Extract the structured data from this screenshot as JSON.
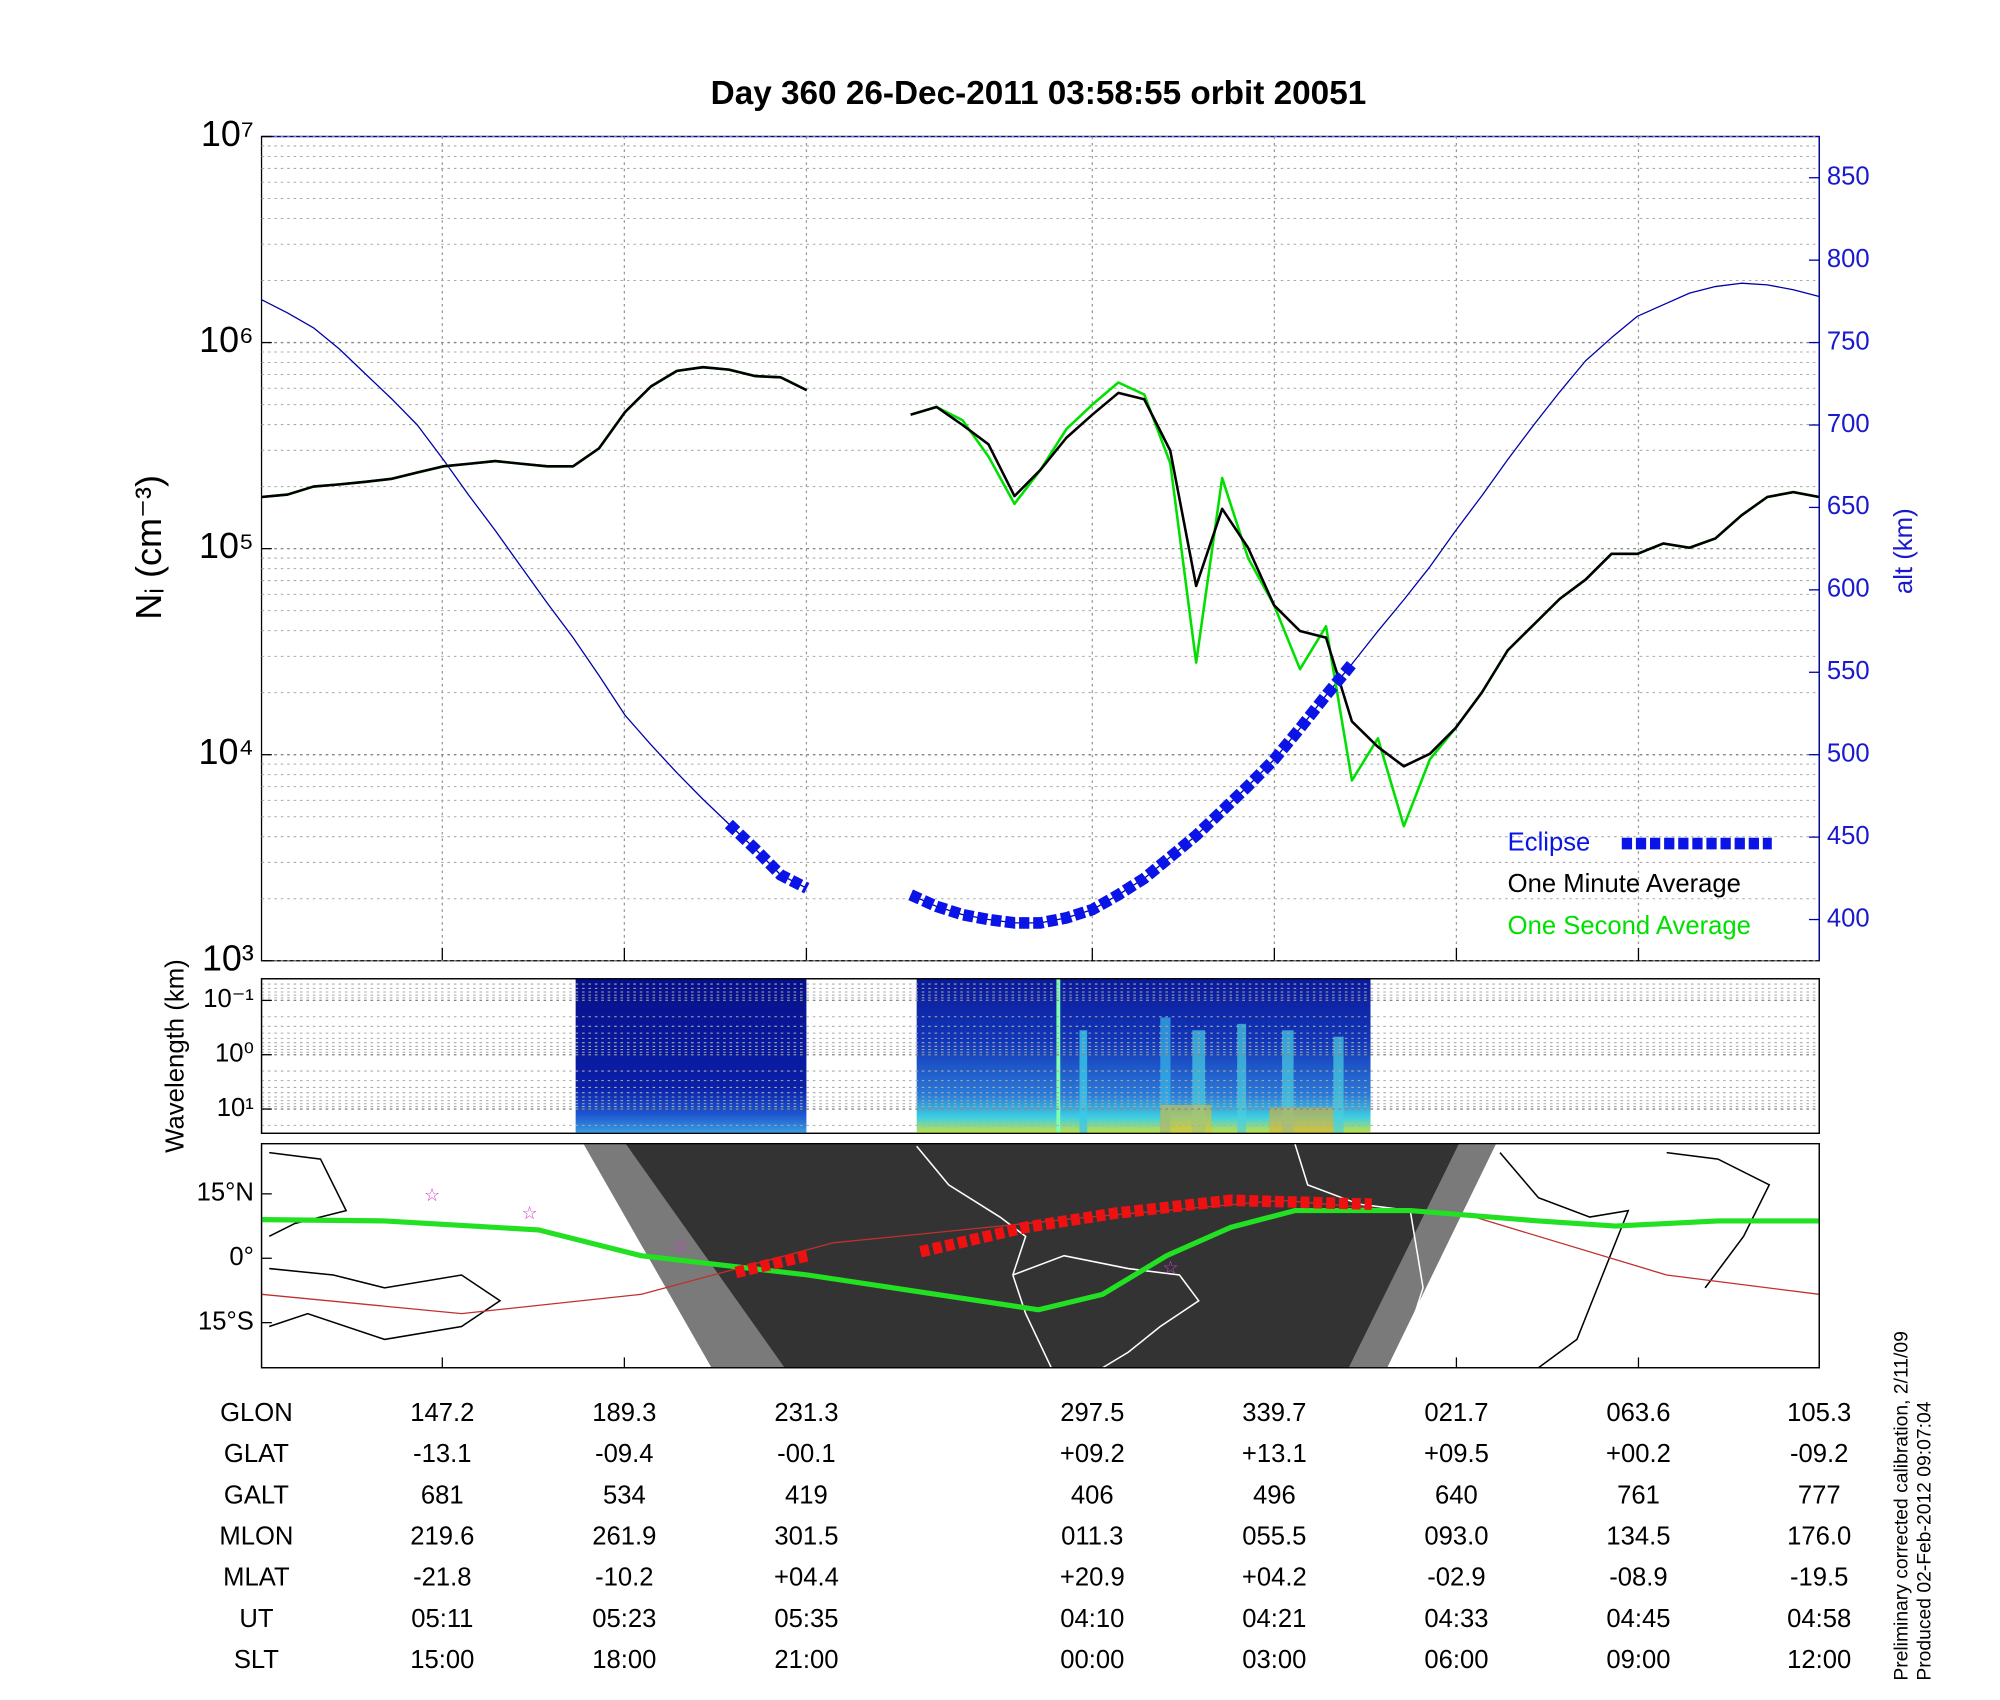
{
  "chart_data": [
    {
      "type": "line",
      "title": "Day 360  26-Dec-2011 03:58:55   orbit 20051",
      "ylabel": "Nᵢ (cm⁻³)",
      "y2label": "alt (km)",
      "log_y": true,
      "grid": true,
      "ylim": [
        1000,
        10000000
      ],
      "yticks": [
        {
          "value": 1000,
          "label": "10³"
        },
        {
          "value": 10000,
          "label": "10⁴"
        },
        {
          "value": 100000,
          "label": "10⁵"
        },
        {
          "value": 1000000,
          "label": "10⁶"
        },
        {
          "value": 10000000,
          "label": "10⁷"
        }
      ],
      "y2lim": [
        375,
        875
      ],
      "y2ticks": [
        400,
        450,
        500,
        550,
        600,
        650,
        700,
        750,
        800,
        850
      ],
      "legend": "lower right",
      "series": [
        {
          "name": "Eclipse",
          "color": "#0a14e6",
          "axis": "y2",
          "values": [
            null,
            null,
            null,
            null,
            null,
            null,
            null,
            null,
            null,
            null,
            null,
            null,
            null,
            null,
            null,
            null,
            null,
            null,
            458,
            443,
            427,
            419,
            null,
            null,
            null,
            415,
            408,
            403,
            400,
            398,
            398,
            401,
            406,
            415,
            425,
            438,
            451,
            466,
            481,
            497,
            516,
            536,
            555,
            null,
            null,
            null,
            null,
            null,
            null,
            null,
            null,
            null,
            null,
            null,
            null,
            null,
            null,
            null,
            null,
            null,
            null
          ]
        },
        {
          "name": "One Minute Average",
          "color": "#000000",
          "values": [
            178000,
            183000,
            200000,
            205000,
            211000,
            218000,
            234000,
            251000,
            258000,
            266000,
            258000,
            251000,
            251000,
            307000,
            460000,
            613000,
            729000,
            760000,
            739000,
            688000,
            678000,
            587000,
            null,
            null,
            null,
            447000,
            487000,
            398000,
            321000,
            180000,
            241000,
            345000,
            447000,
            570000,
            531000,
            299000,
            65900,
            156000,
            101000,
            53100,
            39800,
            37000,
            14500,
            10900,
            8790,
            10100,
            13500,
            20000,
            32100,
            42800,
            57000,
            70800,
            94400,
            94400,
            106000,
            101000,
            112000,
            145000,
            178000,
            188000,
            178000
          ]
        },
        {
          "name": "One Second Average",
          "color": "#00e000",
          "values": [
            178000,
            183000,
            200000,
            205000,
            211000,
            218000,
            234000,
            251000,
            258000,
            266000,
            258000,
            251000,
            251000,
            307000,
            460000,
            613000,
            729000,
            760000,
            739000,
            688000,
            678000,
            587000,
            null,
            null,
            null,
            447000,
            487000,
            420000,
            280000,
            165000,
            241000,
            380000,
            500000,
            640000,
            560000,
            260000,
            28000,
            220000,
            90000,
            53100,
            26000,
            42000,
            7500,
            12000,
            4500,
            9500,
            13500,
            20000,
            32100,
            42800,
            57000,
            70800,
            94400,
            94400,
            106000,
            101000,
            112000,
            145000,
            178000,
            188000,
            178000
          ]
        },
        {
          "color": "#0000aa",
          "axis": "y2",
          "values": [
            776,
            768,
            759,
            746,
            731,
            716,
            700,
            679,
            657,
            636,
            614,
            592,
            571,
            548,
            524,
            506,
            489,
            473,
            458,
            443,
            427,
            419,
            null,
            null,
            null,
            415,
            408,
            403,
            400,
            398,
            398,
            401,
            406,
            415,
            425,
            438,
            451,
            466,
            481,
            497,
            516,
            536,
            555,
            575,
            594,
            614,
            636,
            657,
            679,
            700,
            720,
            739,
            753,
            766,
            773,
            780,
            784,
            786,
            785,
            782,
            778
          ]
        }
      ]
    },
    {
      "type": "spectrogram",
      "ylabel": "Wavelength (km)",
      "log_y": true,
      "grid": true,
      "ylim": [
        28,
        0.04
      ],
      "yticks": [
        {
          "value": 0.1,
          "label": "10⁻¹"
        },
        {
          "value": 1,
          "label": "10⁰"
        },
        {
          "value": 10,
          "label": "10¹"
        }
      ]
    },
    {
      "type": "map",
      "ylim": [
        -25.5,
        26.7
      ],
      "yticks": [
        {
          "value": 15,
          "label": "15°N"
        },
        {
          "value": 0,
          "label": "0°"
        },
        {
          "value": -15,
          "label": "15°S"
        }
      ]
    }
  ],
  "ephemeris": {
    "rows": [
      {
        "label": "GLON",
        "values": [
          "147.2",
          "189.3",
          "231.3",
          "297.5",
          "339.7",
          "021.7",
          "063.6",
          "105.3"
        ]
      },
      {
        "label": "GLAT",
        "values": [
          "-13.1",
          "-09.4",
          "-00.1",
          "+09.2",
          "+13.1",
          "+09.5",
          "+00.2",
          "-09.2"
        ]
      },
      {
        "label": "GALT",
        "values": [
          "681",
          "534",
          "419",
          "406",
          "496",
          "640",
          "761",
          "777"
        ]
      },
      {
        "label": "MLON",
        "values": [
          "219.6",
          "261.9",
          "301.5",
          "011.3",
          "055.5",
          "093.0",
          "134.5",
          "176.0"
        ]
      },
      {
        "label": "MLAT",
        "values": [
          "-21.8",
          "-10.2",
          "+04.4",
          "+20.9",
          "+04.2",
          "-02.9",
          "-08.9",
          "-19.5"
        ]
      },
      {
        "label": "UT",
        "values": [
          "05:11",
          "05:23",
          "05:35",
          "04:10",
          "04:21",
          "04:33",
          "04:45",
          "04:58"
        ]
      },
      {
        "label": "SLT",
        "values": [
          "15:00",
          "18:00",
          "21:00",
          "00:00",
          "03:00",
          "06:00",
          "09:00",
          "12:00"
        ]
      }
    ]
  },
  "notes": [
    "Preliminary corrected calibration, 2/11/09",
    "Produced 02-Feb-2012 09:07:04"
  ]
}
